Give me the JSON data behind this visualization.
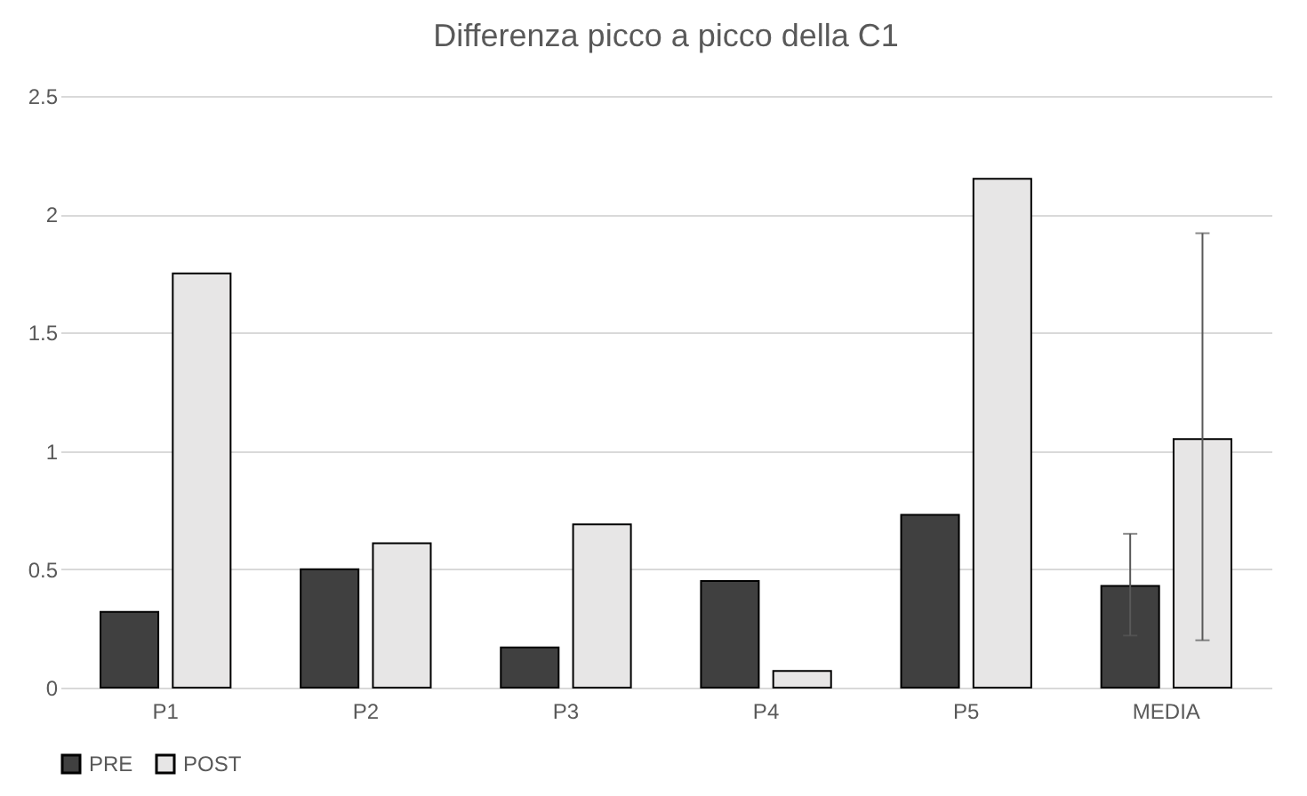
{
  "chart_data": {
    "type": "bar",
    "title": "Differenza picco a picco della C1",
    "categories": [
      "P1",
      "P2",
      "P3",
      "P4",
      "P5",
      "MEDIA"
    ],
    "series": [
      {
        "name": "PRE",
        "color": "#404040",
        "values": [
          0.32,
          0.5,
          0.17,
          0.45,
          0.73,
          0.43
        ],
        "errors": [
          null,
          null,
          null,
          null,
          null,
          [
            0.22,
            0.65
          ]
        ]
      },
      {
        "name": "POST",
        "color": "#e7e6e6",
        "values": [
          1.75,
          0.61,
          0.69,
          0.07,
          2.15,
          1.05
        ],
        "errors": [
          null,
          null,
          null,
          null,
          null,
          [
            0.2,
            1.92
          ]
        ]
      }
    ],
    "ylim": [
      0,
      2.5
    ],
    "yticks": [
      0,
      0.5,
      1,
      1.5,
      2,
      2.5
    ],
    "grid": "y",
    "legend": "bottom"
  }
}
